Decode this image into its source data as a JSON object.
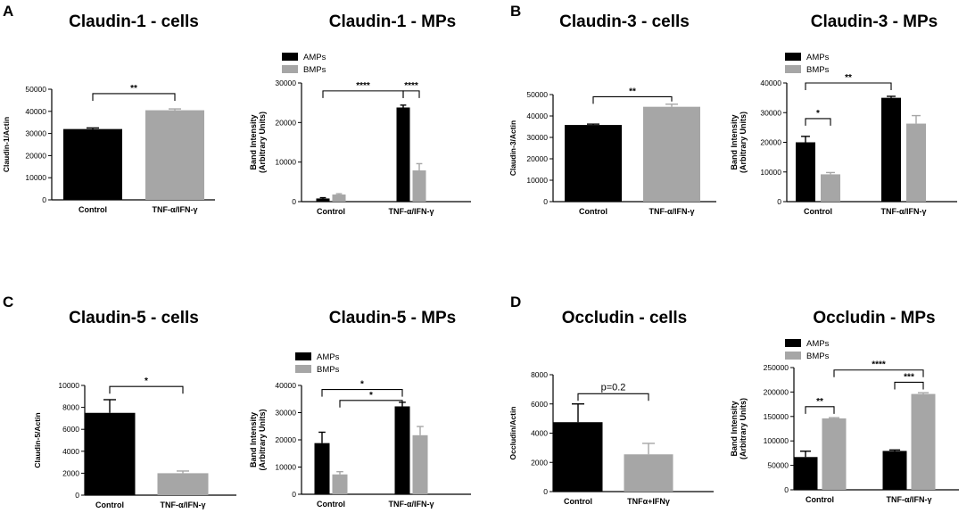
{
  "panel_letters": {
    "A": "A",
    "B": "B",
    "C": "C",
    "D": "D"
  },
  "colors": {
    "black_bar": "#000000",
    "gray_bar": "#a6a6a6",
    "axis": "#000000"
  },
  "chart_data": [
    {
      "id": "a_cells",
      "panel": "A",
      "type": "bar",
      "title": "Claudin-1 - cells",
      "ylabel": "Claudin-1/Actin",
      "ylim": [
        0,
        50000
      ],
      "yticks": [
        0,
        10000,
        20000,
        30000,
        40000,
        50000
      ],
      "yticklabels": [
        "0",
        "10000",
        "20000",
        "30000",
        "40000",
        "50000"
      ],
      "categories": [
        "Control",
        "TNF-α/IFN-γ"
      ],
      "series": [
        {
          "color": "#000000",
          "values": [
            32000,
            null
          ],
          "errors": [
            500,
            null
          ]
        },
        {
          "color": "#a6a6a6",
          "values": [
            null,
            40500
          ],
          "errors": [
            null,
            600
          ]
        }
      ],
      "significance": [
        {
          "label": "**",
          "from": [
            0,
            0
          ],
          "to": [
            1,
            1
          ],
          "y": 48000
        }
      ]
    },
    {
      "id": "a_mps",
      "panel": "A",
      "type": "bar",
      "title": "Claudin-1 - MPs",
      "ylabel": "Band Intensity",
      "ylabel2": "(Arbitrary Units)",
      "ylim": [
        0,
        30000
      ],
      "yticks": [
        0,
        10000,
        20000,
        30000
      ],
      "yticklabels": [
        "0",
        "10000",
        "20000",
        "30000"
      ],
      "categories": [
        "Control",
        "TNF-α/IFN-γ"
      ],
      "legend": [
        {
          "label": "AMPs",
          "color": "#000000"
        },
        {
          "label": "BMPs",
          "color": "#a6a6a6"
        }
      ],
      "series": [
        {
          "name": "AMPs",
          "color": "#000000",
          "values": [
            800,
            23800
          ],
          "errors": [
            200,
            600
          ]
        },
        {
          "name": "BMPs",
          "color": "#a6a6a6",
          "values": [
            1800,
            7900
          ],
          "errors": [
            200,
            1700
          ]
        }
      ],
      "significance": [
        {
          "label": "****",
          "from": [
            0,
            0
          ],
          "to": [
            1,
            0
          ],
          "y": 28000
        },
        {
          "label": "****",
          "from": [
            1,
            0
          ],
          "to": [
            1,
            1
          ],
          "y": 28000
        }
      ]
    },
    {
      "id": "b_cells",
      "panel": "B",
      "type": "bar",
      "title": "Claudin-3 - cells",
      "ylabel": "Claudin-3/Actin",
      "ylim": [
        0,
        50000
      ],
      "yticks": [
        0,
        10000,
        20000,
        30000,
        40000,
        50000
      ],
      "yticklabels": [
        "0",
        "10000",
        "20000",
        "30000",
        "40000",
        "50000"
      ],
      "categories": [
        "Control",
        "TNF-α/IFN-γ"
      ],
      "series": [
        {
          "color": "#000000",
          "values": [
            35800,
            null
          ],
          "errors": [
            400,
            null
          ]
        },
        {
          "color": "#a6a6a6",
          "values": [
            null,
            44300
          ],
          "errors": [
            null,
            1200
          ]
        }
      ],
      "significance": [
        {
          "label": "**",
          "from": [
            0,
            0
          ],
          "to": [
            1,
            1
          ],
          "y": 49000
        }
      ]
    },
    {
      "id": "b_mps",
      "panel": "B",
      "type": "bar",
      "title": "Claudin-3 - MPs",
      "ylabel": "Band Intensity",
      "ylabel2": "(Arbitrary Units)",
      "ylim": [
        0,
        40000
      ],
      "yticks": [
        0,
        10000,
        20000,
        30000,
        40000
      ],
      "yticklabels": [
        "0",
        "10000",
        "20000",
        "30000",
        "40000"
      ],
      "categories": [
        "Control",
        "TNF-α/IFN-γ"
      ],
      "legend": [
        {
          "label": "AMPs",
          "color": "#000000"
        },
        {
          "label": "BMPs",
          "color": "#a6a6a6"
        }
      ],
      "series": [
        {
          "name": "AMPs",
          "color": "#000000",
          "values": [
            20000,
            35000
          ],
          "errors": [
            2000,
            500
          ]
        },
        {
          "name": "BMPs",
          "color": "#a6a6a6",
          "values": [
            9200,
            26300
          ],
          "errors": [
            600,
            2700
          ]
        }
      ],
      "significance": [
        {
          "label": "**",
          "from": [
            0,
            0
          ],
          "to": [
            1,
            0
          ],
          "y": 40000
        },
        {
          "label": "*",
          "from": [
            0,
            0
          ],
          "to": [
            0,
            1
          ],
          "y": 28000
        }
      ]
    },
    {
      "id": "c_cells",
      "panel": "C",
      "type": "bar",
      "title": "Claudin-5 - cells",
      "ylabel": "Claudin-5/Actin",
      "ylim": [
        0,
        10000
      ],
      "yticks": [
        0,
        2000,
        4000,
        6000,
        8000,
        10000
      ],
      "yticklabels": [
        "0",
        "2000",
        "4000",
        "6000",
        "8000",
        "10000"
      ],
      "categories": [
        "Control",
        "TNF-α/IFN-γ"
      ],
      "series": [
        {
          "color": "#000000",
          "values": [
            7500,
            null
          ],
          "errors": [
            1200,
            null
          ]
        },
        {
          "color": "#a6a6a6",
          "values": [
            null,
            2000
          ],
          "errors": [
            null,
            200
          ]
        }
      ],
      "significance": [
        {
          "label": "*",
          "from": [
            0,
            0
          ],
          "to": [
            1,
            1
          ],
          "y": 9900
        }
      ]
    },
    {
      "id": "c_mps",
      "panel": "C",
      "type": "bar",
      "title": "Claudin-5 - MPs",
      "ylabel": "Band Intensity",
      "ylabel2": "(Arbitrary Units)",
      "ylim": [
        0,
        40000
      ],
      "yticks": [
        0,
        10000,
        20000,
        30000,
        40000
      ],
      "yticklabels": [
        "0",
        "10000",
        "20000",
        "30000",
        "40000"
      ],
      "categories": [
        "Control",
        "TNF-α/IFN-γ"
      ],
      "legend": [
        {
          "label": "AMPs",
          "color": "#000000"
        },
        {
          "label": "BMPs",
          "color": "#a6a6a6"
        }
      ],
      "series": [
        {
          "name": "AMPs",
          "color": "#000000",
          "values": [
            18800,
            32300
          ],
          "errors": [
            4000,
            1500
          ]
        },
        {
          "name": "BMPs",
          "color": "#a6a6a6",
          "values": [
            7300,
            21700
          ],
          "errors": [
            1000,
            3200
          ]
        }
      ],
      "significance": [
        {
          "label": "*",
          "from": [
            0,
            0
          ],
          "to": [
            1,
            0
          ],
          "y": 38500
        },
        {
          "label": "*",
          "from": [
            0,
            1
          ],
          "to": [
            1,
            0
          ],
          "y": 34500
        }
      ]
    },
    {
      "id": "d_cells",
      "panel": "D",
      "type": "bar",
      "title": "Occludin - cells",
      "ylabel": "Occludin/Actin",
      "ylim": [
        0,
        8000
      ],
      "yticks": [
        0,
        2000,
        4000,
        6000,
        8000
      ],
      "yticklabels": [
        "0",
        "2000",
        "4000",
        "6000",
        "8000"
      ],
      "categories": [
        "Control",
        "TNFα+IFNγ"
      ],
      "series": [
        {
          "color": "#000000",
          "values": [
            4750,
            null
          ],
          "errors": [
            1250,
            null
          ]
        },
        {
          "color": "#a6a6a6",
          "values": [
            null,
            2550
          ],
          "errors": [
            null,
            750
          ]
        }
      ],
      "significance": [
        {
          "label": "p=0.2",
          "from": [
            0,
            0
          ],
          "to": [
            1,
            1
          ],
          "y": 6700
        }
      ]
    },
    {
      "id": "d_mps",
      "panel": "D",
      "type": "bar",
      "title": "Occludin - MPs",
      "ylabel": "Band Intensity",
      "ylabel2": "(Arbitrary Units)",
      "ylim": [
        0,
        250000
      ],
      "yticks": [
        0,
        50000,
        100000,
        150000,
        200000,
        250000
      ],
      "yticklabels": [
        "0",
        "50000",
        "100000",
        "150000",
        "200000",
        "250000"
      ],
      "categories": [
        "Control",
        "TNF-α/IFN-γ"
      ],
      "legend": [
        {
          "label": "AMPs",
          "color": "#000000"
        },
        {
          "label": "BMPs",
          "color": "#a6a6a6"
        }
      ],
      "series": [
        {
          "name": "AMPs",
          "color": "#000000",
          "values": [
            67000,
            79500
          ],
          "errors": [
            12000,
            2000
          ]
        },
        {
          "name": "BMPs",
          "color": "#a6a6a6",
          "values": [
            146000,
            196000
          ],
          "errors": [
            1500,
            2500
          ]
        }
      ],
      "significance": [
        {
          "label": "****",
          "from": [
            0,
            1
          ],
          "to": [
            1,
            1
          ],
          "y": 245000
        },
        {
          "label": "**",
          "from": [
            0,
            0
          ],
          "to": [
            0,
            1
          ],
          "y": 170000
        },
        {
          "label": "***",
          "from": [
            1,
            0
          ],
          "to": [
            1,
            1
          ],
          "y": 220000
        }
      ]
    }
  ]
}
